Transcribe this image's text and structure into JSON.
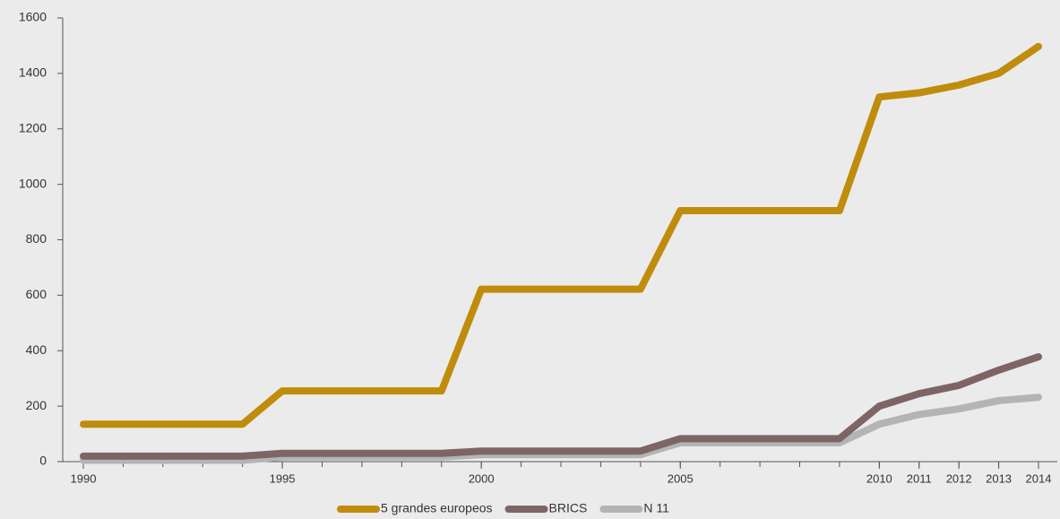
{
  "chart_data": {
    "type": "line",
    "x": [
      1990,
      1991,
      1992,
      1993,
      1994,
      1995,
      1996,
      1997,
      1998,
      1999,
      2000,
      2001,
      2002,
      2003,
      2004,
      2005,
      2006,
      2007,
      2008,
      2009,
      2010,
      2011,
      2012,
      2013,
      2014
    ],
    "series": [
      {
        "name": "5 grandes europeos",
        "color": "#bf8c0c",
        "values": [
          135,
          135,
          135,
          135,
          135,
          255,
          255,
          255,
          255,
          255,
          622,
          622,
          622,
          622,
          622,
          905,
          905,
          905,
          905,
          905,
          1315,
          1330,
          1358,
          1400,
          1497
        ]
      },
      {
        "name": "BRICS",
        "color": "#7f6465",
        "values": [
          20,
          20,
          20,
          20,
          20,
          30,
          30,
          30,
          30,
          30,
          38,
          38,
          38,
          38,
          38,
          83,
          83,
          83,
          83,
          83,
          200,
          245,
          275,
          330,
          378
        ]
      },
      {
        "name": "N 11",
        "color": "#b4b4b4",
        "values": [
          5,
          5,
          5,
          5,
          5,
          17,
          17,
          17,
          17,
          17,
          25,
          25,
          25,
          25,
          25,
          68,
          68,
          68,
          68,
          68,
          135,
          170,
          190,
          220,
          232
        ]
      }
    ],
    "xlim": [
      1990,
      2014
    ],
    "xticks": [
      1990,
      1995,
      2000,
      2005,
      2010,
      2011,
      2012,
      2013,
      2014
    ],
    "ylim": [
      0,
      1600
    ],
    "yticks": [
      0,
      200,
      400,
      600,
      800,
      1000,
      1200,
      1400,
      1600
    ],
    "legend": "bottom"
  }
}
